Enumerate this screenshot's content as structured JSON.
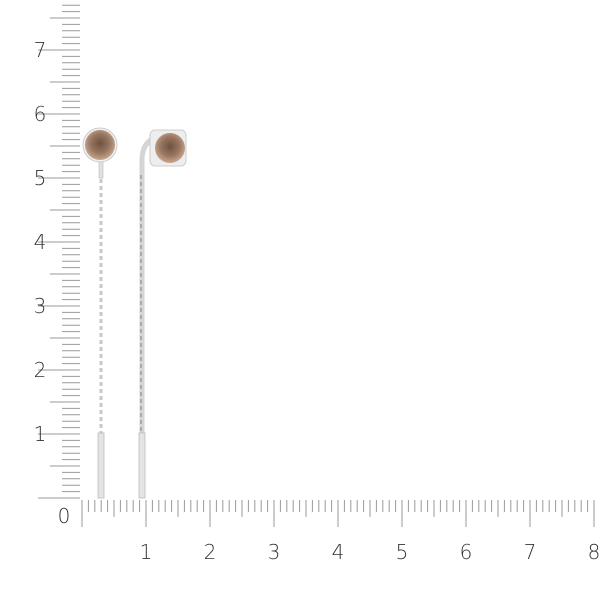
{
  "rulers": {
    "unit": "cm",
    "horizontal_labels": [
      "0",
      "1",
      "2",
      "3",
      "4",
      "5",
      "6",
      "7",
      "8"
    ],
    "vertical_labels": [
      "1",
      "2",
      "3",
      "4",
      "5",
      "6",
      "7"
    ]
  },
  "colors": {
    "tick": "#9a9a9a",
    "label": "#333333",
    "gem": "#8a6a55",
    "metal": "#d9d9d9"
  }
}
